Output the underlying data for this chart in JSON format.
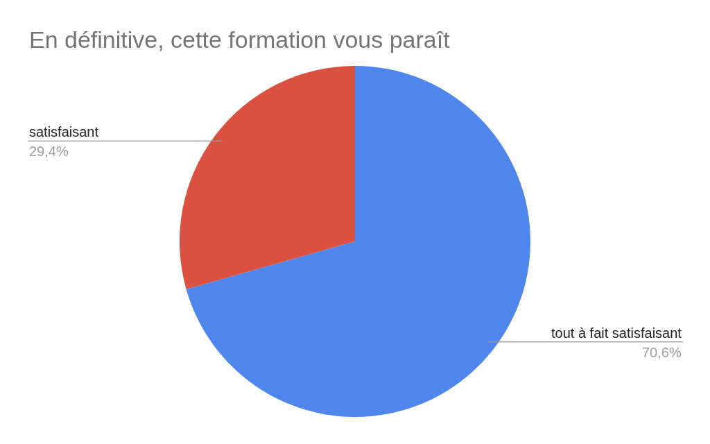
{
  "chart_data": {
    "type": "pie",
    "title": "En définitive, cette formation vous paraît",
    "categories": [
      "tout à fait satisfaisant",
      "satisfaisant"
    ],
    "values": [
      70.6,
      29.4
    ],
    "colors": [
      "#4e86ec",
      "#da5142"
    ],
    "value_labels": [
      "70,6%",
      "29,4%"
    ],
    "legend": false
  }
}
